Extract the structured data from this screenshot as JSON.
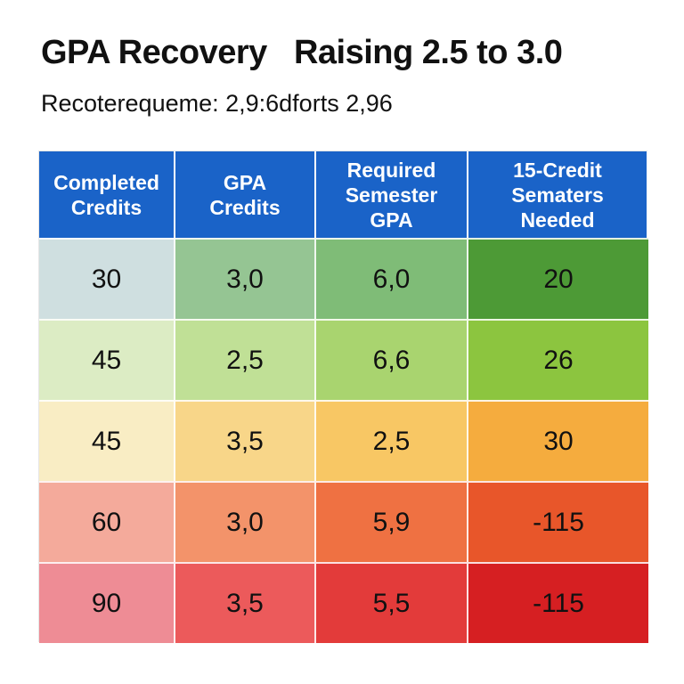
{
  "title": "GPA Recovery   Raising 2.5 to 3.0",
  "subtitle": "Recoterequeme: 2,9:6dforts 2,96",
  "chart_data": {
    "type": "table",
    "columns": [
      "Completed\nCredits",
      "GPA\nCredits",
      "Required\nSemester\nGPA",
      "15-Credit\nSematers\nNeeded"
    ],
    "rows": [
      [
        "30",
        "3,0",
        "6,0",
        "20"
      ],
      [
        "45",
        "2,5",
        "6,6",
        "26"
      ],
      [
        "45",
        "3,5",
        "2,5",
        "30"
      ],
      [
        "60",
        "3,0",
        "5,9",
        "-115"
      ],
      [
        "90",
        "3,5",
        "5,5",
        "-115"
      ]
    ],
    "row_colors": [
      [
        "#cfdfe0",
        "#95c593",
        "#7fbc77",
        "#4d9a36"
      ],
      [
        "#dcecc4",
        "#c0e096",
        "#a9d46f",
        "#8cc53f"
      ],
      [
        "#f9edc4",
        "#f8d689",
        "#f8c764",
        "#f5ac3e"
      ],
      [
        "#f4aa9b",
        "#f3936a",
        "#ef7142",
        "#e8562a"
      ],
      [
        "#ee8c95",
        "#ec5a5b",
        "#e33b3a",
        "#d61f22"
      ]
    ],
    "header_color": "#1a63c8"
  }
}
